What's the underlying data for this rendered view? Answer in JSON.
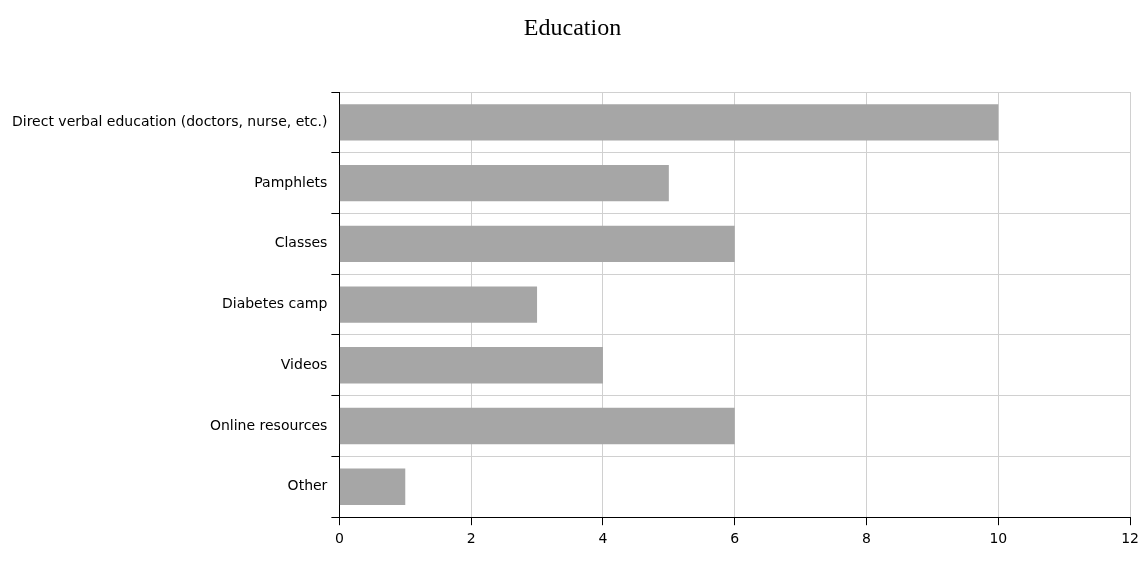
{
  "chart_data": {
    "type": "bar",
    "orientation": "horizontal",
    "title": "Education",
    "categories": [
      "Direct verbal education (doctors, nurse, etc.)",
      "Pamphlets",
      "Classes",
      "Diabetes camp",
      "Videos",
      "Online resources",
      "Other"
    ],
    "values": [
      10,
      5,
      6,
      3,
      4,
      6,
      1
    ],
    "color": "#a6a6a6",
    "xlim": [
      0,
      12
    ],
    "xticks": [
      0,
      2,
      4,
      6,
      8,
      10,
      12
    ],
    "grid": true,
    "legend": false
  }
}
